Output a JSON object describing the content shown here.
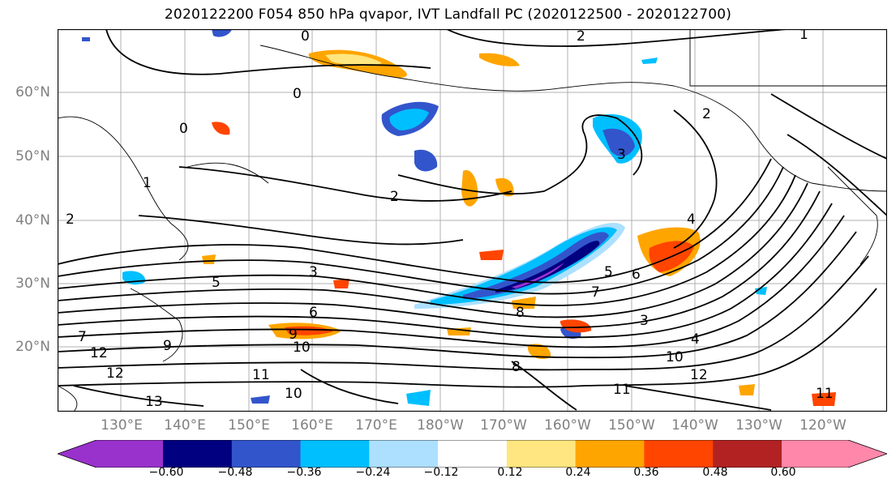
{
  "title": "2020122200 F054 850 hPa qvapor, IVT Landfall PC (2020122500 - 2020122700)",
  "map": {
    "lat_labels": [
      "60°N",
      "50°N",
      "40°N",
      "30°N",
      "20°N"
    ],
    "lon_labels": [
      "130°E",
      "140°E",
      "150°E",
      "160°E",
      "170°E",
      "180°W",
      "170°W",
      "160°W",
      "150°W",
      "140°W",
      "130°W",
      "120°W"
    ],
    "contour_labels": [
      "0",
      "2",
      "1",
      "0",
      "0",
      "2",
      "2",
      "3",
      "1",
      "2",
      "3",
      "4",
      "5",
      "6",
      "7",
      "8",
      "9",
      "10",
      "11",
      "12",
      "13",
      "10",
      "11",
      "12",
      "3",
      "4",
      "5",
      "6",
      "7",
      "8",
      "9",
      "10",
      "11",
      "12"
    ]
  },
  "colorbar": {
    "ticks": [
      "−0.60",
      "−0.48",
      "−0.36",
      "−0.24",
      "−0.12",
      "0.12",
      "0.24",
      "0.36",
      "0.48",
      "0.60"
    ],
    "colors": [
      "#9932CC",
      "#000080",
      "#3355CC",
      "#00BFFF",
      "#ADE0FF",
      "#FFFFFF",
      "#FFE680",
      "#FFA500",
      "#FF4500",
      "#B22222",
      "#FF88AA"
    ]
  }
}
